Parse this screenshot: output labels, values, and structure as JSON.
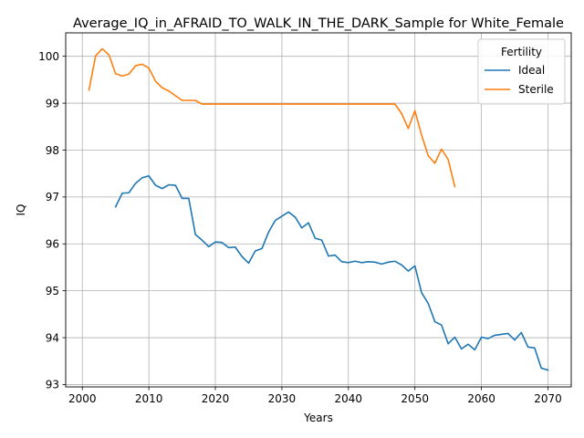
{
  "chart_data": {
    "type": "line",
    "title": "Average_IQ_in_AFRAID_TO_WALK_IN_THE_DARK_Sample for White_Female",
    "xlabel": "Years",
    "ylabel": "IQ",
    "xlim": [
      1997.5,
      2073.5
    ],
    "ylim": [
      92.95,
      100.5
    ],
    "xticks": [
      2000,
      2010,
      2020,
      2030,
      2040,
      2050,
      2060,
      2070
    ],
    "yticks": [
      93,
      94,
      95,
      96,
      97,
      98,
      99,
      100
    ],
    "grid": true,
    "legend": {
      "title": "Fertility",
      "placement": "top-right"
    },
    "series": [
      {
        "name": "Ideal",
        "color": "#1f77b4",
        "x": [
          2005,
          2006,
          2007,
          2008,
          2009,
          2010,
          2011,
          2012,
          2013,
          2014,
          2015,
          2016,
          2017,
          2018,
          2019,
          2020,
          2021,
          2022,
          2023,
          2024,
          2025,
          2026,
          2027,
          2028,
          2029,
          2030,
          2031,
          2032,
          2033,
          2034,
          2035,
          2036,
          2037,
          2038,
          2039,
          2040,
          2041,
          2042,
          2043,
          2044,
          2045,
          2046,
          2047,
          2048,
          2049,
          2050,
          2051,
          2052,
          2053,
          2054,
          2055,
          2056,
          2057,
          2058,
          2059,
          2060,
          2061,
          2062,
          2063,
          2064,
          2065,
          2066,
          2067,
          2068,
          2069,
          2070
        ],
        "values": [
          96.79,
          97.08,
          97.09,
          97.29,
          97.41,
          97.45,
          97.25,
          97.18,
          97.26,
          97.25,
          96.97,
          96.97,
          96.2,
          96.08,
          95.94,
          96.04,
          96.03,
          95.92,
          95.93,
          95.73,
          95.59,
          95.85,
          95.9,
          96.25,
          96.5,
          96.59,
          96.68,
          96.57,
          96.34,
          96.45,
          96.12,
          96.08,
          95.74,
          95.76,
          95.62,
          95.6,
          95.63,
          95.6,
          95.62,
          95.61,
          95.57,
          95.61,
          95.63,
          95.55,
          95.42,
          95.53,
          94.96,
          94.73,
          94.34,
          94.27,
          93.87,
          94.01,
          93.76,
          93.86,
          93.74,
          94.01,
          93.98,
          94.05,
          94.07,
          94.09,
          93.95,
          94.11,
          93.8,
          93.78,
          93.35,
          93.31
        ]
      },
      {
        "name": "Sterile",
        "color": "#ff7f0e",
        "x": [
          2001,
          2002,
          2003,
          2004,
          2005,
          2006,
          2007,
          2008,
          2009,
          2010,
          2011,
          2012,
          2013,
          2014,
          2015,
          2016,
          2017,
          2018,
          2019,
          2020,
          2021,
          2022,
          2023,
          2024,
          2025,
          2026,
          2027,
          2028,
          2029,
          2030,
          2031,
          2032,
          2033,
          2034,
          2035,
          2036,
          2037,
          2038,
          2039,
          2040,
          2041,
          2042,
          2043,
          2044,
          2045,
          2046,
          2047,
          2048,
          2049,
          2050,
          2051,
          2052,
          2053,
          2054,
          2055,
          2056
        ],
        "values": [
          99.28,
          100.01,
          100.16,
          100.03,
          99.63,
          99.58,
          99.62,
          99.8,
          99.83,
          99.75,
          99.47,
          99.33,
          99.26,
          99.16,
          99.06,
          99.06,
          99.06,
          98.98,
          98.98,
          98.98,
          98.98,
          98.98,
          98.98,
          98.98,
          98.98,
          98.98,
          98.98,
          98.98,
          98.98,
          98.98,
          98.98,
          98.98,
          98.98,
          98.98,
          98.98,
          98.98,
          98.98,
          98.98,
          98.98,
          98.98,
          98.98,
          98.98,
          98.98,
          98.98,
          98.98,
          98.98,
          98.98,
          98.78,
          98.46,
          98.84,
          98.32,
          97.88,
          97.72,
          98.02,
          97.8,
          97.22
        ]
      }
    ]
  }
}
